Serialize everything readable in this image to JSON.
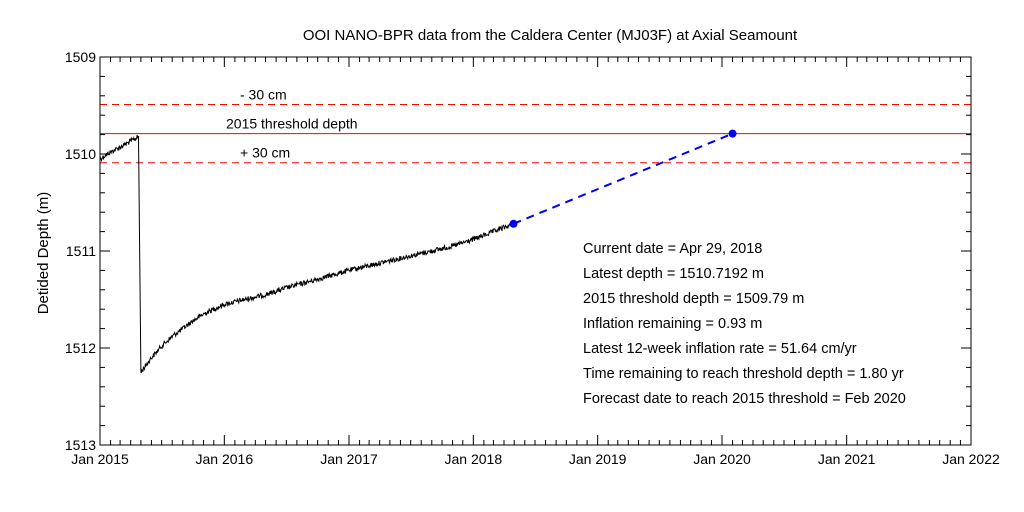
{
  "chart_data": {
    "type": "line",
    "title": "OOI NANO-BPR data from the Caldera Center (MJ03F) at Axial Seamount",
    "xlabel": "",
    "ylabel": "Detided Depth (m)",
    "xlim": [
      "2015-01-01",
      "2022-01-01"
    ],
    "ylim": [
      1509,
      1513
    ],
    "y_inverted": true,
    "x_ticks": [
      "Jan 2015",
      "Jan 2016",
      "Jan 2017",
      "Jan 2018",
      "Jan 2019",
      "Jan 2020",
      "Jan 2021",
      "Jan 2022"
    ],
    "y_ticks": [
      "1509",
      "1510",
      "1511",
      "1512",
      "1513"
    ],
    "series": [
      {
        "name": "",
        "color": "#000000",
        "x": [
          "2015-01-01",
          "2015-02-01",
          "2015-03-01",
          "2015-04-10",
          "2015-04-24",
          "2015-05-01",
          "2015-06-01",
          "2015-07-01",
          "2015-08-01",
          "2015-09-01",
          "2015-10-01",
          "2015-11-01",
          "2015-12-01",
          "2016-01-01",
          "2016-03-01",
          "2016-05-01",
          "2016-07-01",
          "2016-09-01",
          "2016-11-01",
          "2017-01-01",
          "2017-03-01",
          "2017-05-01",
          "2017-07-01",
          "2017-09-01",
          "2017-11-01",
          "2018-01-01",
          "2018-03-01",
          "2018-04-29"
        ],
        "y": [
          1510.05,
          1509.98,
          1509.93,
          1509.85,
          1509.82,
          1512.25,
          1512.1,
          1511.98,
          1511.88,
          1511.8,
          1511.72,
          1511.65,
          1511.6,
          1511.55,
          1511.5,
          1511.45,
          1511.38,
          1511.32,
          1511.26,
          1511.2,
          1511.15,
          1511.1,
          1511.05,
          1511.0,
          1510.95,
          1510.88,
          1510.8,
          1510.72
        ]
      }
    ],
    "forecast": {
      "color": "#0000ee",
      "style": "dashed",
      "start": {
        "x": "2018-04-29",
        "y": 1510.7192
      },
      "end": {
        "x": "2020-02-01",
        "y": 1509.79
      }
    },
    "reference_lines": [
      {
        "y": 1509.49,
        "color": "#ff0000",
        "style": "dashed",
        "label": "- 30 cm"
      },
      {
        "y": 1509.79,
        "color": "#ff0000",
        "style": "solid",
        "label": "2015 threshold depth"
      },
      {
        "y": 1510.09,
        "color": "#ff0000",
        "style": "dashed",
        "label": "+ 30 cm"
      }
    ],
    "annotations": [
      "Current date = Apr 29, 2018",
      "Latest depth = 1510.7192 m",
      "2015 threshold depth = 1509.79 m",
      "Inflation remaining =    0.93 m",
      "Latest 12-week inflation rate =  51.64 cm/yr",
      "Time remaining to reach threshold depth =  1.80 yr",
      "Forecast date to reach  2015 threshold = Feb 2020"
    ],
    "grid": false
  }
}
